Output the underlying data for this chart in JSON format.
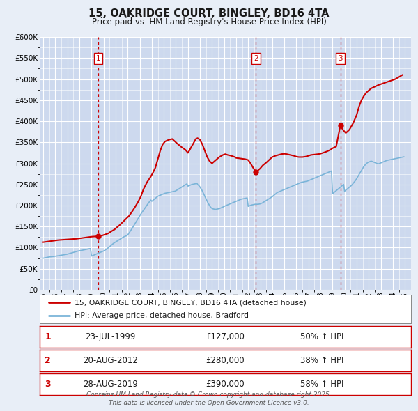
{
  "title": "15, OAKRIDGE COURT, BINGLEY, BD16 4TA",
  "subtitle": "Price paid vs. HM Land Registry's House Price Index (HPI)",
  "bg_color": "#e8eef7",
  "plot_bg_color": "#cdd9ee",
  "grid_color": "#ffffff",
  "ylim": [
    0,
    600000
  ],
  "yticks": [
    0,
    50000,
    100000,
    150000,
    200000,
    250000,
    300000,
    350000,
    400000,
    450000,
    500000,
    550000,
    600000
  ],
  "ytick_labels": [
    "£0",
    "£50K",
    "£100K",
    "£150K",
    "£200K",
    "£250K",
    "£300K",
    "£350K",
    "£400K",
    "£450K",
    "£500K",
    "£550K",
    "£600K"
  ],
  "xlim_start": 1994.7,
  "xlim_end": 2025.5,
  "xtick_years": [
    1995,
    1996,
    1997,
    1998,
    1999,
    2000,
    2001,
    2002,
    2003,
    2004,
    2005,
    2006,
    2007,
    2008,
    2009,
    2010,
    2011,
    2012,
    2013,
    2014,
    2015,
    2016,
    2017,
    2018,
    2019,
    2020,
    2021,
    2022,
    2023,
    2024,
    2025
  ],
  "hpi_color": "#7ab4d8",
  "price_color": "#cc0000",
  "marker_color": "#cc0000",
  "vline_color": "#cc0000",
  "legend_border_color": "#888888",
  "sale_label_color": "#cc0000",
  "purchases": [
    {
      "num": 1,
      "date_dec": 1999.56,
      "price": 127000,
      "label": "23-JUL-1999",
      "price_str": "£127,000",
      "pct": "50% ↑ HPI"
    },
    {
      "num": 2,
      "date_dec": 2012.64,
      "price": 280000,
      "label": "20-AUG-2012",
      "price_str": "£280,000",
      "pct": "38% ↑ HPI"
    },
    {
      "num": 3,
      "date_dec": 2019.65,
      "price": 390000,
      "label": "28-AUG-2019",
      "price_str": "£390,000",
      "pct": "58% ↑ HPI"
    }
  ],
  "hpi_x": [
    1995.0,
    1995.083,
    1995.167,
    1995.25,
    1995.333,
    1995.417,
    1995.5,
    1995.583,
    1995.667,
    1995.75,
    1995.833,
    1995.917,
    1996.0,
    1996.083,
    1996.167,
    1996.25,
    1996.333,
    1996.417,
    1996.5,
    1996.583,
    1996.667,
    1996.75,
    1996.833,
    1996.917,
    1997.0,
    1997.083,
    1997.167,
    1997.25,
    1997.333,
    1997.417,
    1997.5,
    1997.583,
    1997.667,
    1997.75,
    1997.833,
    1997.917,
    1998.0,
    1998.083,
    1998.167,
    1998.25,
    1998.333,
    1998.417,
    1998.5,
    1998.583,
    1998.667,
    1998.75,
    1998.833,
    1998.917,
    1999.0,
    1999.083,
    1999.167,
    1999.25,
    1999.333,
    1999.417,
    1999.5,
    1999.583,
    1999.667,
    1999.75,
    1999.833,
    1999.917,
    2000.0,
    2000.083,
    2000.167,
    2000.25,
    2000.333,
    2000.417,
    2000.5,
    2000.583,
    2000.667,
    2000.75,
    2000.833,
    2000.917,
    2001.0,
    2001.083,
    2001.167,
    2001.25,
    2001.333,
    2001.417,
    2001.5,
    2001.583,
    2001.667,
    2001.75,
    2001.833,
    2001.917,
    2002.0,
    2002.083,
    2002.167,
    2002.25,
    2002.333,
    2002.417,
    2002.5,
    2002.583,
    2002.667,
    2002.75,
    2002.833,
    2002.917,
    2003.0,
    2003.083,
    2003.167,
    2003.25,
    2003.333,
    2003.417,
    2003.5,
    2003.583,
    2003.667,
    2003.75,
    2003.833,
    2003.917,
    2004.0,
    2004.083,
    2004.167,
    2004.25,
    2004.333,
    2004.417,
    2004.5,
    2004.583,
    2004.667,
    2004.75,
    2004.833,
    2004.917,
    2005.0,
    2005.083,
    2005.167,
    2005.25,
    2005.333,
    2005.417,
    2005.5,
    2005.583,
    2005.667,
    2005.75,
    2005.833,
    2005.917,
    2006.0,
    2006.083,
    2006.167,
    2006.25,
    2006.333,
    2006.417,
    2006.5,
    2006.583,
    2006.667,
    2006.75,
    2006.833,
    2006.917,
    2007.0,
    2007.083,
    2007.167,
    2007.25,
    2007.333,
    2007.417,
    2007.5,
    2007.583,
    2007.667,
    2007.75,
    2007.833,
    2007.917,
    2008.0,
    2008.083,
    2008.167,
    2008.25,
    2008.333,
    2008.417,
    2008.5,
    2008.583,
    2008.667,
    2008.75,
    2008.833,
    2008.917,
    2009.0,
    2009.083,
    2009.167,
    2009.25,
    2009.333,
    2009.417,
    2009.5,
    2009.583,
    2009.667,
    2009.75,
    2009.833,
    2009.917,
    2010.0,
    2010.083,
    2010.167,
    2010.25,
    2010.333,
    2010.417,
    2010.5,
    2010.583,
    2010.667,
    2010.75,
    2010.833,
    2010.917,
    2011.0,
    2011.083,
    2011.167,
    2011.25,
    2011.333,
    2011.417,
    2011.5,
    2011.583,
    2011.667,
    2011.75,
    2011.833,
    2011.917,
    2012.0,
    2012.083,
    2012.167,
    2012.25,
    2012.333,
    2012.417,
    2012.5,
    2012.583,
    2012.667,
    2012.75,
    2012.833,
    2012.917,
    2013.0,
    2013.083,
    2013.167,
    2013.25,
    2013.333,
    2013.417,
    2013.5,
    2013.583,
    2013.667,
    2013.75,
    2013.833,
    2013.917,
    2014.0,
    2014.083,
    2014.167,
    2014.25,
    2014.333,
    2014.417,
    2014.5,
    2014.583,
    2014.667,
    2014.75,
    2014.833,
    2014.917,
    2015.0,
    2015.083,
    2015.167,
    2015.25,
    2015.333,
    2015.417,
    2015.5,
    2015.583,
    2015.667,
    2015.75,
    2015.833,
    2015.917,
    2016.0,
    2016.083,
    2016.167,
    2016.25,
    2016.333,
    2016.417,
    2016.5,
    2016.583,
    2016.667,
    2016.75,
    2016.833,
    2016.917,
    2017.0,
    2017.083,
    2017.167,
    2017.25,
    2017.333,
    2017.417,
    2017.5,
    2017.583,
    2017.667,
    2017.75,
    2017.833,
    2017.917,
    2018.0,
    2018.083,
    2018.167,
    2018.25,
    2018.333,
    2018.417,
    2018.5,
    2018.583,
    2018.667,
    2018.75,
    2018.833,
    2018.917,
    2019.0,
    2019.083,
    2019.167,
    2019.25,
    2019.333,
    2019.417,
    2019.5,
    2019.583,
    2019.667,
    2019.75,
    2019.833,
    2019.917,
    2020.0,
    2020.083,
    2020.167,
    2020.25,
    2020.333,
    2020.417,
    2020.5,
    2020.583,
    2020.667,
    2020.75,
    2020.833,
    2020.917,
    2021.0,
    2021.083,
    2021.167,
    2021.25,
    2021.333,
    2021.417,
    2021.5,
    2021.583,
    2021.667,
    2021.75,
    2021.833,
    2021.917,
    2022.0,
    2022.083,
    2022.167,
    2022.25,
    2022.333,
    2022.417,
    2022.5,
    2022.583,
    2022.667,
    2022.75,
    2022.833,
    2022.917,
    2023.0,
    2023.083,
    2023.167,
    2023.25,
    2023.333,
    2023.417,
    2023.5,
    2023.583,
    2023.667,
    2023.75,
    2023.833,
    2023.917,
    2024.0,
    2024.083,
    2024.167,
    2024.25,
    2024.333,
    2024.417,
    2024.5,
    2024.583,
    2024.667,
    2024.75,
    2024.833,
    2024.917
  ],
  "hpi_y": [
    75000,
    75500,
    76000,
    76500,
    77000,
    77500,
    78000,
    78200,
    78400,
    78700,
    79000,
    79300,
    79600,
    80000,
    80400,
    80800,
    81200,
    81600,
    82000,
    82400,
    82800,
    83200,
    83600,
    84000,
    84500,
    85200,
    85900,
    86600,
    87300,
    88000,
    88700,
    89400,
    90100,
    90800,
    91500,
    92000,
    92500,
    93000,
    93500,
    94000,
    94500,
    95000,
    95500,
    96000,
    96500,
    97000,
    97500,
    98000,
    80000,
    81000,
    82000,
    83000,
    84000,
    85000,
    86000,
    87000,
    88000,
    89000,
    90000,
    91000,
    92000,
    93500,
    95000,
    96500,
    98500,
    100500,
    102500,
    104500,
    106500,
    108500,
    110500,
    112000,
    113500,
    115000,
    116500,
    118000,
    119500,
    121000,
    122500,
    124000,
    125500,
    126500,
    127500,
    128500,
    130000,
    133500,
    137000,
    140500,
    144000,
    148000,
    152000,
    156000,
    160000,
    164000,
    168000,
    172000,
    176000,
    179500,
    183000,
    186500,
    190000,
    193500,
    197000,
    200500,
    204000,
    207000,
    210000,
    213000,
    210000,
    212000,
    214000,
    216000,
    218000,
    220000,
    222000,
    223000,
    224000,
    225000,
    226000,
    227000,
    228000,
    229000,
    229500,
    230000,
    230500,
    231000,
    231500,
    232000,
    232500,
    233000,
    233500,
    234000,
    235000,
    236500,
    238000,
    239500,
    241000,
    242500,
    244000,
    245500,
    247000,
    248500,
    250000,
    251500,
    246000,
    247000,
    248000,
    249000,
    250000,
    250500,
    251000,
    251500,
    252000,
    252500,
    249000,
    247000,
    244000,
    240000,
    236000,
    231000,
    226000,
    221000,
    216000,
    211000,
    206000,
    202000,
    198000,
    195000,
    193000,
    192000,
    191500,
    191000,
    191000,
    191500,
    192000,
    192500,
    193500,
    194500,
    195500,
    196500,
    198000,
    199000,
    200000,
    201000,
    202000,
    203000,
    204000,
    205000,
    206000,
    207000,
    208000,
    209000,
    210000,
    211000,
    212000,
    213000,
    214000,
    215000,
    215500,
    216000,
    216500,
    217000,
    217500,
    218000,
    198000,
    199000,
    200000,
    201000,
    201500,
    202000,
    202500,
    203000,
    203000,
    203000,
    203000,
    203500,
    204000,
    205000,
    206000,
    207500,
    209000,
    210500,
    212000,
    213500,
    215000,
    216500,
    218000,
    219500,
    221000,
    223000,
    225000,
    227000,
    229000,
    231000,
    232000,
    233000,
    234000,
    235000,
    236000,
    237000,
    238000,
    239000,
    240000,
    241000,
    242000,
    243000,
    244000,
    245000,
    246000,
    247000,
    248000,
    249000,
    250000,
    251000,
    252000,
    253000,
    254000,
    255000,
    255500,
    256000,
    256500,
    257000,
    257500,
    258000,
    259000,
    260000,
    261000,
    262000,
    263000,
    264000,
    265000,
    266000,
    267000,
    268000,
    269000,
    270000,
    271000,
    272000,
    273000,
    274000,
    275000,
    276000,
    277000,
    278000,
    279000,
    280000,
    281000,
    282000,
    228000,
    230000,
    232000,
    234000,
    236000,
    238000,
    240000,
    242000,
    244000,
    246000,
    248000,
    250000,
    234000,
    236000,
    238000,
    240000,
    242000,
    244000,
    246000,
    248000,
    251000,
    254000,
    257000,
    260000,
    264000,
    268000,
    272000,
    276000,
    280000,
    284000,
    288000,
    292000,
    295000,
    298000,
    300000,
    302000,
    303000,
    304000,
    305000,
    305000,
    304000,
    303000,
    302000,
    301000,
    300000,
    299000,
    299000,
    300000,
    301000,
    302000,
    303000,
    304000,
    305000,
    306000,
    307000,
    307500,
    308000,
    308500,
    309000,
    309500,
    310000,
    310500,
    311000,
    311500,
    312000,
    312500,
    313000,
    313500,
    314000,
    314500,
    315000,
    315500
  ],
  "price_x": [
    1995.0,
    1995.25,
    1995.5,
    1995.75,
    1996.0,
    1996.25,
    1996.5,
    1996.75,
    1997.0,
    1997.25,
    1997.5,
    1997.75,
    1998.0,
    1998.25,
    1998.5,
    1998.75,
    1999.0,
    1999.25,
    1999.56,
    1999.7,
    1999.9,
    2000.1,
    2000.4,
    2000.6,
    2000.9,
    2001.1,
    2001.35,
    2001.6,
    2001.85,
    2002.1,
    2002.35,
    2002.6,
    2002.85,
    2003.1,
    2003.3,
    2003.6,
    2003.9,
    2004.1,
    2004.3,
    2004.5,
    2004.7,
    2004.9,
    2005.1,
    2005.4,
    2005.7,
    2006.0,
    2006.2,
    2006.5,
    2006.8,
    2007.0,
    2007.15,
    2007.3,
    2007.5,
    2007.65,
    2007.8,
    2008.0,
    2008.2,
    2008.4,
    2008.6,
    2008.8,
    2009.0,
    2009.2,
    2009.4,
    2009.6,
    2009.9,
    2010.1,
    2010.3,
    2010.6,
    2010.9,
    2011.0,
    2011.25,
    2011.5,
    2011.75,
    2012.0,
    2012.2,
    2012.4,
    2012.64,
    2012.8,
    2013.0,
    2013.2,
    2013.5,
    2013.8,
    2014.0,
    2014.25,
    2014.5,
    2014.75,
    2015.0,
    2015.2,
    2015.5,
    2015.8,
    2016.0,
    2016.2,
    2016.5,
    2016.75,
    2017.0,
    2017.2,
    2017.5,
    2017.8,
    2018.0,
    2018.2,
    2018.5,
    2018.8,
    2019.0,
    2019.3,
    2019.65,
    2019.85,
    2020.1,
    2020.4,
    2020.7,
    2021.0,
    2021.2,
    2021.4,
    2021.6,
    2021.8,
    2022.0,
    2022.2,
    2022.5,
    2022.8,
    2023.0,
    2023.2,
    2023.5,
    2023.8,
    2024.0,
    2024.2,
    2024.5,
    2024.8
  ],
  "price_y": [
    113000,
    114000,
    115000,
    116000,
    117000,
    118000,
    118500,
    119000,
    119500,
    120000,
    120500,
    121000,
    122000,
    123000,
    124000,
    125000,
    126000,
    126500,
    127000,
    128000,
    129000,
    131000,
    134000,
    138000,
    143000,
    148000,
    154000,
    161000,
    168000,
    175000,
    185000,
    196000,
    208000,
    222000,
    238000,
    255000,
    268000,
    278000,
    290000,
    310000,
    330000,
    345000,
    352000,
    356000,
    358000,
    350000,
    345000,
    338000,
    332000,
    325000,
    332000,
    340000,
    350000,
    358000,
    360000,
    356000,
    345000,
    330000,
    315000,
    305000,
    300000,
    305000,
    310000,
    315000,
    320000,
    322000,
    320000,
    318000,
    315000,
    313000,
    312000,
    311000,
    310000,
    308000,
    300000,
    290000,
    280000,
    283000,
    288000,
    295000,
    302000,
    310000,
    315000,
    318000,
    320000,
    322000,
    323000,
    322000,
    320000,
    318000,
    316000,
    315000,
    315000,
    316000,
    318000,
    320000,
    321000,
    322000,
    323000,
    325000,
    328000,
    332000,
    336000,
    340000,
    390000,
    380000,
    372000,
    380000,
    395000,
    415000,
    435000,
    450000,
    460000,
    468000,
    473000,
    478000,
    482000,
    486000,
    488000,
    490000,
    493000,
    496000,
    498000,
    500000,
    505000,
    510000
  ]
}
